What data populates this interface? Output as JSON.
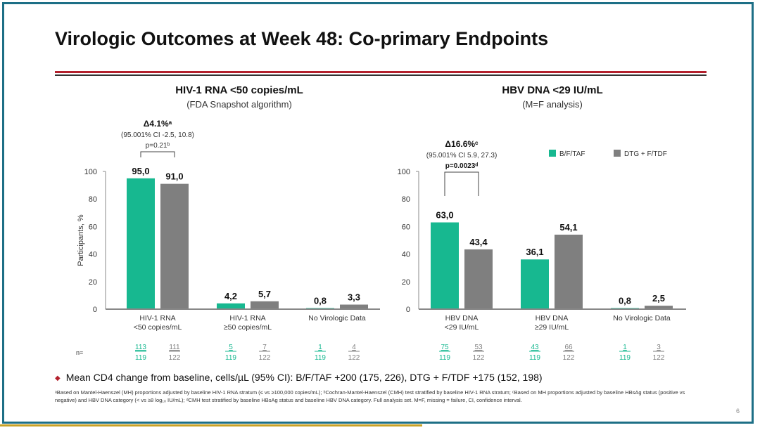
{
  "title": "Virologic Outcomes at Week 48: Co-primary Endpoints",
  "colors": {
    "bftaf": "#17b890",
    "dtg": "#7f7f7f",
    "accent": "#b3202c",
    "frame": "#1d6f86"
  },
  "legend": [
    "B/F/TAF",
    "DTG + F/TDF"
  ],
  "chart_data": [
    {
      "type": "bar",
      "title": "HIV-1 RNA <50 copies/mL",
      "subtitle": "(FDA Snapshot algorithm)",
      "ylabel": "Participants, %",
      "ylim": [
        0,
        100
      ],
      "yticks": [
        0,
        20,
        40,
        60,
        80,
        100
      ],
      "categories": [
        [
          "HIV-1 RNA",
          "<50 copies/mL"
        ],
        [
          "HIV-1 RNA",
          "≥50 copies/mL"
        ],
        [
          "No Virologic Data",
          ""
        ]
      ],
      "series": [
        {
          "name": "B/F/TAF",
          "values": [
            95.0,
            4.2,
            0.8
          ],
          "labels": [
            "95,0",
            "4,2",
            "0,8"
          ],
          "n": [
            "113",
            "5",
            "1"
          ],
          "N": [
            "119",
            "119",
            "119"
          ]
        },
        {
          "name": "DTG + F/TDF",
          "values": [
            91.0,
            5.7,
            3.3
          ],
          "labels": [
            "91,0",
            "5,7",
            "3,3"
          ],
          "n": [
            "111",
            "7",
            "4"
          ],
          "N": [
            "122",
            "122",
            "122"
          ]
        }
      ],
      "n_label": "n=",
      "annotation": {
        "delta": "Δ4.1%ᵃ",
        "ci": "(95.001% CI -2.5, 10.8)",
        "p": "p=0.21ᵇ"
      }
    },
    {
      "type": "bar",
      "title": "HBV DNA <29 IU/mL",
      "subtitle": "(M=F analysis)",
      "ylim": [
        0,
        100
      ],
      "yticks": [
        0,
        20,
        40,
        60,
        80,
        100
      ],
      "categories": [
        [
          "HBV DNA",
          "<29 IU/mL"
        ],
        [
          "HBV DNA",
          "≥29 IU/mL"
        ],
        [
          "No Virologic Data",
          ""
        ]
      ],
      "series": [
        {
          "name": "B/F/TAF",
          "values": [
            63.0,
            36.1,
            0.8
          ],
          "labels": [
            "63,0",
            "36,1",
            "0,8"
          ],
          "n": [
            "75",
            "43",
            "1"
          ],
          "N": [
            "119",
            "119",
            "119"
          ]
        },
        {
          "name": "DTG + F/TDF",
          "values": [
            43.4,
            54.1,
            2.5
          ],
          "labels": [
            "43,4",
            "54,1",
            "2,5"
          ],
          "n": [
            "53",
            "66",
            "3"
          ],
          "N": [
            "122",
            "122",
            "122"
          ]
        }
      ],
      "annotation": {
        "delta": "Δ16.6%ᶜ",
        "ci": "(95.001% CI 5.9, 27.3)",
        "p": "p=0.0023ᵈ"
      }
    }
  ],
  "note": "Mean CD4 change from baseline, cells/µL (95% CI): B/F/TAF +200 (175, 226), DTG + F/TDF +175 (152, 198)",
  "footnote": "ᵃBased on Mantel-Haenszel (MH) proportions adjusted by baseline HIV-1 RNA stratum (≤ vs ≥100,000 copies/mL); ᵇCochran-Mantel-Haenszel (CMH) test stratified by baseline HIV-1 RNA stratum; ᶜBased on MH proportions adjusted by baseline HBsAg status (positive vs negative) and HBV DNA category (< vs ≥8 log₁₀ IU/mL); ᵈCMH test stratified by baseline HBsAg status and baseline HBV DNA category. Full analysis set. M=F, missing = failure, CI, confidence interval.",
  "page_number": "6"
}
